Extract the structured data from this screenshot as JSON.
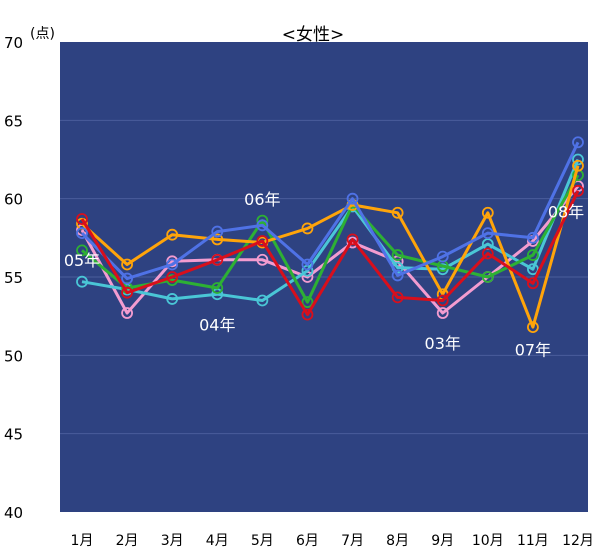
{
  "chart_data": {
    "type": "line",
    "title": "<女性>",
    "ylabel": "(点)",
    "xlabel": "",
    "ylim": [
      40,
      70
    ],
    "yticks": [
      40,
      45,
      50,
      55,
      60,
      65,
      70
    ],
    "categories": [
      "1月",
      "2月",
      "3月",
      "4月",
      "5月",
      "6月",
      "7月",
      "8月",
      "9月",
      "10月",
      "11月",
      "12月"
    ],
    "grid": true,
    "plot_background": "#2e4281",
    "series": [
      {
        "name": "03年",
        "color": "#f39cd0",
        "values": [
          58.0,
          52.7,
          56.0,
          56.1,
          56.1,
          55.0,
          57.2,
          56.0,
          52.7,
          55.0,
          57.3,
          60.8
        ]
      },
      {
        "name": "04年",
        "color": "#4ac6d6",
        "values": [
          54.7,
          54.2,
          53.6,
          53.9,
          53.5,
          55.4,
          59.5,
          55.6,
          55.5,
          57.1,
          55.5,
          62.5
        ]
      },
      {
        "name": "05年",
        "color": "#2db034",
        "values": [
          56.7,
          54.3,
          54.8,
          54.3,
          58.6,
          53.4,
          59.6,
          56.4,
          55.7,
          55.0,
          56.4,
          61.5
        ]
      },
      {
        "name": "06年",
        "color": "#ffa40a",
        "values": [
          58.4,
          55.8,
          57.7,
          57.4,
          57.2,
          58.1,
          59.6,
          59.1,
          53.9,
          59.1,
          51.8,
          62.1
        ]
      },
      {
        "name": "07年",
        "color": "#4f72e6",
        "values": [
          57.8,
          54.9,
          55.8,
          57.9,
          58.3,
          55.8,
          60.0,
          55.1,
          56.3,
          57.8,
          57.5,
          63.6
        ]
      },
      {
        "name": "08年",
        "color": "#d80f1c",
        "values": [
          58.7,
          54.0,
          55.0,
          56.1,
          57.3,
          52.6,
          57.4,
          53.7,
          53.5,
          56.5,
          54.6,
          60.5
        ]
      }
    ],
    "annotations": [
      {
        "text": "05年",
        "x": "1月",
        "y": 55.7
      },
      {
        "text": "06年",
        "x": "5月",
        "y": 59.6
      },
      {
        "text": "04年",
        "x": "4月",
        "y": 51.6
      },
      {
        "text": "03年",
        "x": "9月",
        "y": 50.4
      },
      {
        "text": "07年",
        "x": "11月",
        "y": 50.0
      },
      {
        "text": "08年",
        "x": "12月",
        "y": 58.8
      }
    ]
  }
}
